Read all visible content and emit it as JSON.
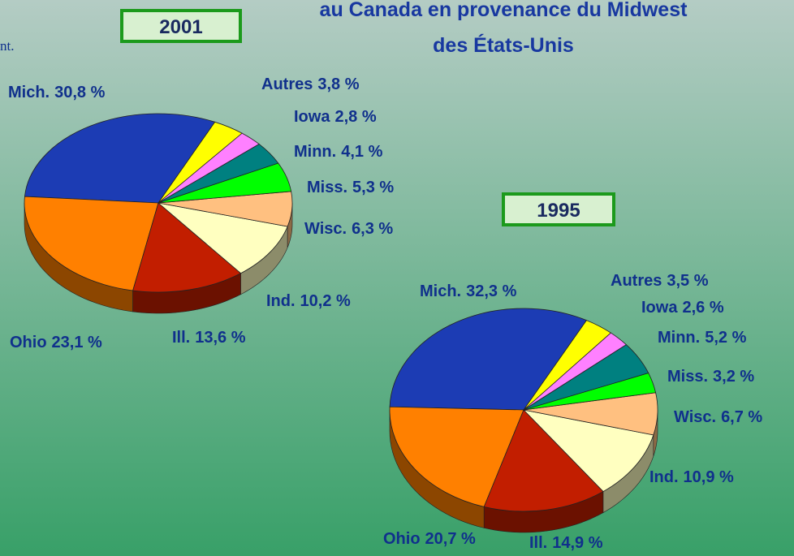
{
  "title_lines": [
    "au Canada en provenance du Midwest",
    "des États-Unis"
  ],
  "fragment": "nt.",
  "chart_data": [
    {
      "type": "pie",
      "title": "2001",
      "categories": [
        "Mich.",
        "Ohio",
        "Ill.",
        "Ind.",
        "Wisc.",
        "Miss.",
        "Minn.",
        "Iowa",
        "Autres"
      ],
      "values": [
        30.8,
        23.1,
        13.6,
        10.2,
        6.3,
        5.3,
        4.1,
        2.8,
        3.8
      ],
      "value_labels": [
        "30,8 %",
        "23,1 %",
        "13,6 %",
        "10,2 %",
        "6,3 %",
        "5,3 %",
        "4,1 %",
        "2,8 %",
        "3,8 %"
      ],
      "colors": [
        "#1c3cb4",
        "#ff8000",
        "#c21e00",
        "#ffffc0",
        "#ffc080",
        "#00ff00",
        "#008080",
        "#ff80ff",
        "#ffff00"
      ]
    },
    {
      "type": "pie",
      "title": "1995",
      "categories": [
        "Mich.",
        "Ohio",
        "Ill.",
        "Ind.",
        "Wisc.",
        "Miss.",
        "Minn.",
        "Iowa",
        "Autres"
      ],
      "values": [
        32.3,
        20.7,
        14.9,
        10.9,
        6.7,
        3.2,
        5.2,
        2.6,
        3.5
      ],
      "value_labels": [
        "32,3 %",
        "20,7 %",
        "14,9 %",
        "10,9 %",
        "6,7 %",
        "3,2 %",
        "5,2 %",
        "2,6 %",
        "3,5 %"
      ],
      "colors": [
        "#1c3cb4",
        "#ff8000",
        "#c21e00",
        "#ffffc0",
        "#ffc080",
        "#00ff00",
        "#008080",
        "#ff80ff",
        "#ffff00"
      ]
    }
  ]
}
